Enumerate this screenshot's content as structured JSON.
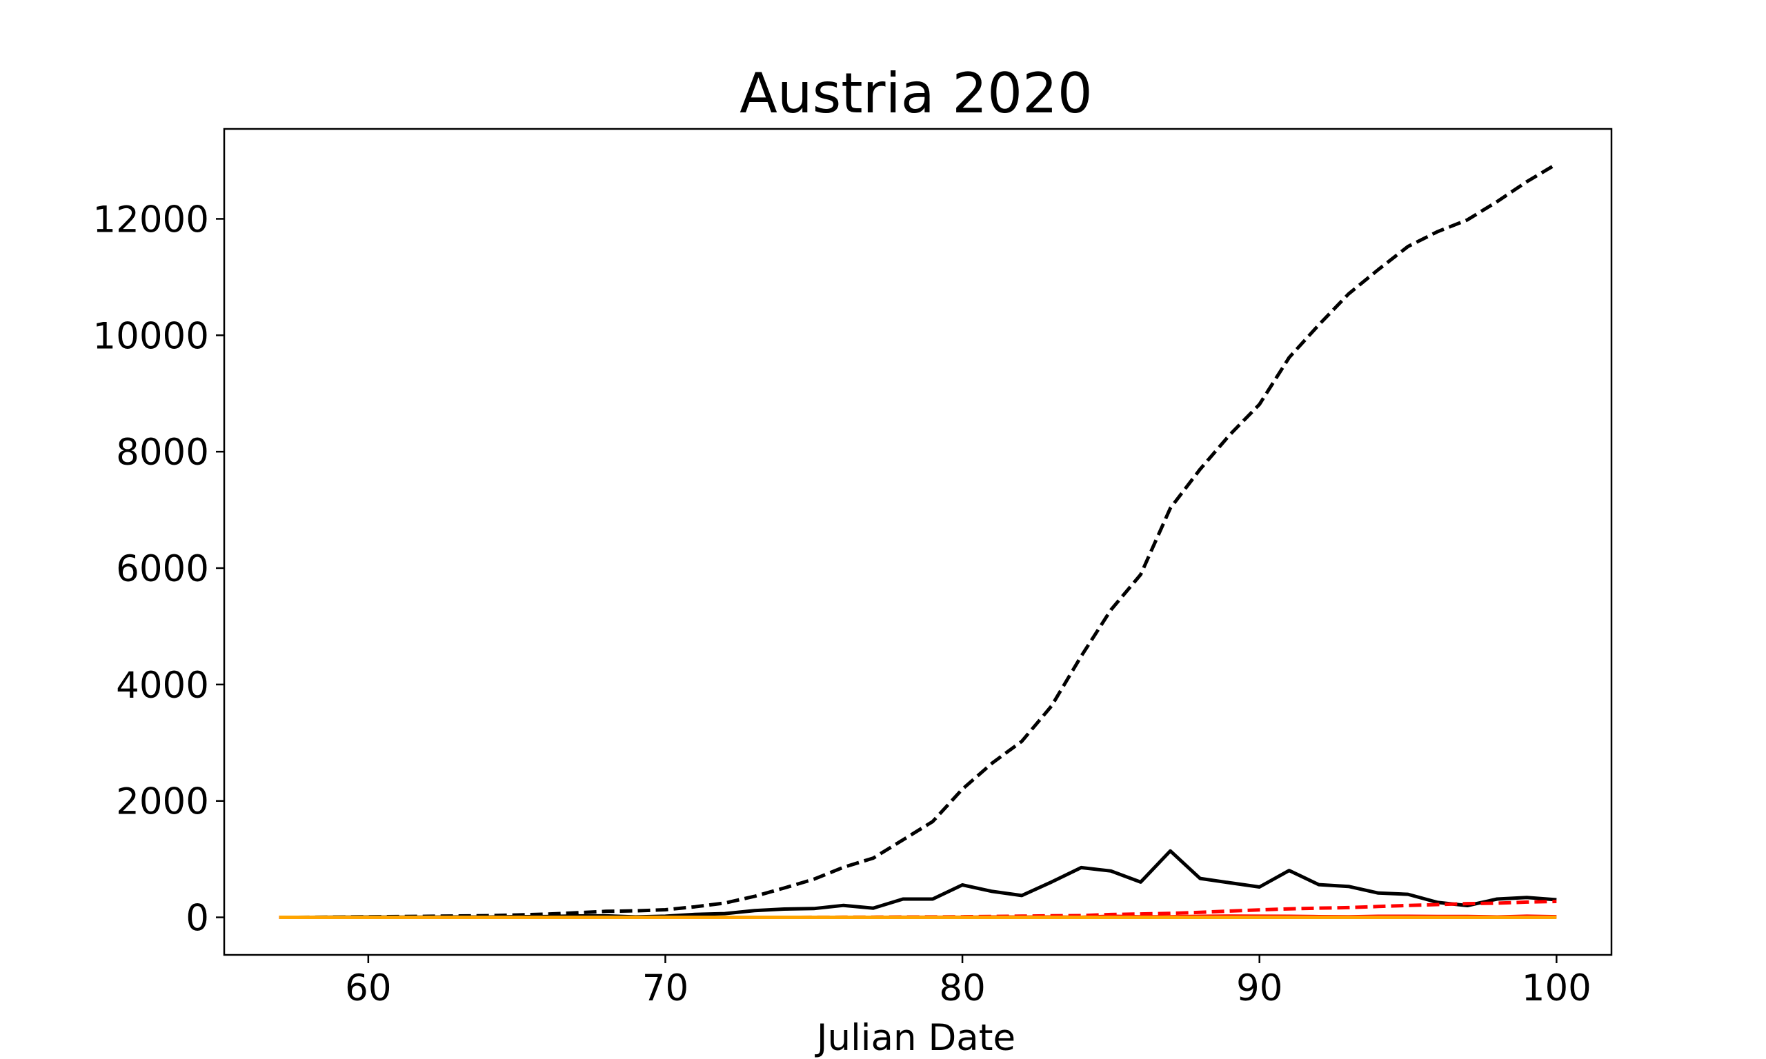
{
  "chart_data": {
    "type": "line",
    "title": "Austria 2020",
    "xlabel": "Julian Date",
    "ylabel": "",
    "xlim": [
      55.15,
      101.85
    ],
    "ylim": [
      -645,
      13545
    ],
    "xticks": [
      60,
      70,
      80,
      90,
      100
    ],
    "yticks": [
      0,
      2000,
      4000,
      6000,
      8000,
      10000,
      12000
    ],
    "grid": false,
    "legend": "none",
    "x": [
      57,
      58,
      59,
      60,
      61,
      62,
      63,
      64,
      65,
      66,
      67,
      68,
      69,
      70,
      71,
      72,
      73,
      74,
      75,
      76,
      77,
      78,
      79,
      80,
      81,
      82,
      83,
      84,
      85,
      86,
      87,
      88,
      89,
      90,
      91,
      92,
      93,
      94,
      95,
      96,
      97,
      98,
      99,
      100
    ],
    "series": [
      {
        "style": "dashed",
        "color": "#000000",
        "values": [
          1,
          2,
          5,
          10,
          14,
          18,
          24,
          29,
          41,
          55,
          79,
          104,
          112,
          131,
          182,
          246,
          361,
          504,
          655,
          860,
          1018,
          1332,
          1646,
          2203,
          2649,
          3024,
          3631,
          4486,
          5282,
          5888,
          7029,
          7697,
          8291,
          8813,
          9618,
          10180,
          10711,
          11129,
          11525,
          11781,
          11983,
          12297,
          12639,
          12942
        ]
      },
      {
        "style": "solid",
        "color": "#000000",
        "values": [
          1,
          1,
          3,
          5,
          4,
          4,
          6,
          5,
          12,
          14,
          24,
          25,
          8,
          19,
          51,
          64,
          115,
          143,
          151,
          205,
          158,
          314,
          314,
          557,
          446,
          375,
          607,
          855,
          796,
          606,
          1141,
          668,
          594,
          522,
          805,
          562,
          531,
          418,
          396,
          256,
          202,
          314,
          342,
          303
        ]
      },
      {
        "style": "dashed",
        "color": "#ff0000",
        "values": [
          0,
          0,
          0,
          0,
          0,
          0,
          0,
          0,
          0,
          0,
          0,
          0,
          0,
          0,
          0,
          1,
          1,
          1,
          2,
          3,
          4,
          6,
          8,
          10,
          16,
          21,
          28,
          30,
          49,
          58,
          68,
          86,
          108,
          128,
          146,
          158,
          168,
          186,
          204,
          220,
          236,
          243,
          262,
          273
        ]
      },
      {
        "style": "solid",
        "color": "#ff0000",
        "values": [
          0,
          0,
          0,
          0,
          0,
          0,
          0,
          0,
          0,
          0,
          0,
          0,
          0,
          0,
          0,
          1,
          0,
          0,
          1,
          1,
          1,
          2,
          2,
          2,
          6,
          5,
          7,
          2,
          19,
          9,
          10,
          18,
          22,
          20,
          18,
          12,
          10,
          18,
          18,
          16,
          16,
          7,
          19,
          11
        ]
      },
      {
        "style": "solid",
        "color": "#ffa500",
        "values": [
          0,
          0,
          0,
          0,
          0,
          0,
          0,
          0,
          0,
          0,
          0,
          0,
          0,
          0,
          0,
          0,
          0,
          0,
          0,
          0,
          0,
          0,
          0,
          0,
          0,
          0,
          0,
          0,
          0,
          0,
          0,
          0,
          0,
          0,
          0,
          0,
          0,
          0,
          0,
          0,
          0,
          0,
          0,
          0
        ]
      }
    ]
  }
}
